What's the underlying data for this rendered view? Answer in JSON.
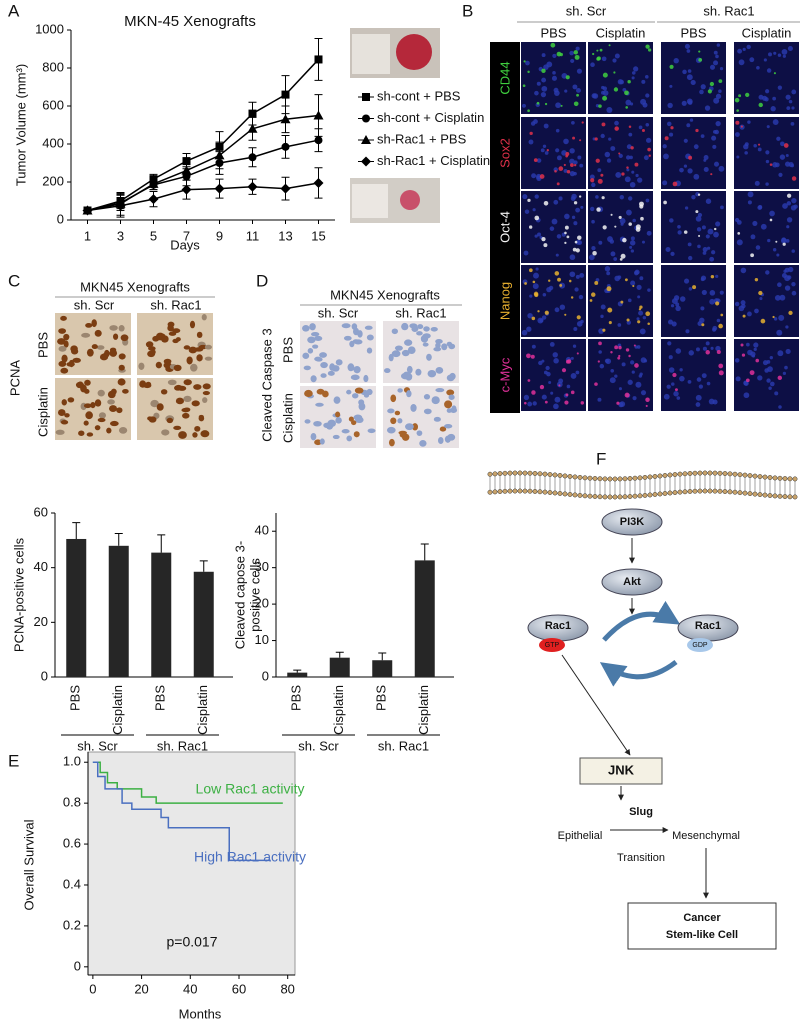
{
  "panel_letters": [
    "A",
    "B",
    "C",
    "D",
    "E",
    "F"
  ],
  "chart_data": [
    {
      "type": "line",
      "title": "MKN-45 Xenografts",
      "xlabel": "Days",
      "ylabel": "Tumor Volume (mm³)",
      "x": [
        1,
        3,
        5,
        7,
        9,
        11,
        13,
        15
      ],
      "xlim": [
        0,
        16
      ],
      "xticks": [
        1,
        3,
        5,
        7,
        9,
        11,
        13,
        15
      ],
      "ylim": [
        0,
        1000
      ],
      "yticks": [
        0,
        200,
        400,
        600,
        800,
        1000
      ],
      "legend": "right",
      "series": [
        {
          "name": "sh-cont + PBS",
          "color": "#000000",
          "marker": "square",
          "values": [
            50,
            100,
            215,
            310,
            385,
            560,
            660,
            845
          ],
          "errors": [
            10,
            40,
            25,
            40,
            80,
            60,
            100,
            110
          ]
        },
        {
          "name": "sh-cont + Cisplatin",
          "color": "#000000",
          "marker": "circle",
          "values": [
            50,
            90,
            185,
            230,
            300,
            330,
            385,
            420
          ],
          "errors": [
            10,
            40,
            25,
            50,
            60,
            50,
            60,
            60
          ]
        },
        {
          "name": "sh-Rac1 + PBS",
          "color": "#000000",
          "marker": "triangle",
          "values": [
            50,
            85,
            190,
            260,
            340,
            480,
            530,
            550
          ],
          "errors": [
            10,
            60,
            30,
            50,
            70,
            60,
            70,
            110
          ]
        },
        {
          "name": "sh-Rac1 + Cisplatin",
          "color": "#000000",
          "marker": "diamond",
          "values": [
            50,
            75,
            110,
            160,
            165,
            175,
            165,
            195
          ],
          "errors": [
            10,
            60,
            40,
            50,
            50,
            40,
            60,
            80
          ]
        }
      ]
    },
    {
      "type": "bar",
      "ylabel": [
        "PCNA-positive cells"
      ],
      "categories": [
        "PBS",
        "Cisplatin",
        "PBS",
        "Cisplatin"
      ],
      "groups": [
        "sh. Scr",
        "sh. Rac1"
      ],
      "values": [
        50.5,
        48,
        45.5,
        38.5
      ],
      "errors": [
        6,
        4.5,
        6.5,
        4
      ],
      "color": "#262626",
      "ylim": [
        0,
        60
      ],
      "yticks": [
        0,
        20,
        40,
        60
      ]
    },
    {
      "type": "bar",
      "ylabel": [
        "Cleaved capose 3-",
        "positive cells"
      ],
      "categories": [
        "PBS",
        "Cisplatin",
        "PBS",
        "Cisplatin"
      ],
      "groups": [
        "sh. Scr",
        "sh. Rac1"
      ],
      "values": [
        1.2,
        5.3,
        4.6,
        32
      ],
      "errors": [
        0.7,
        1.5,
        2,
        4.5
      ],
      "color": "#262626",
      "ylim": [
        0,
        45
      ],
      "yticks": [
        0,
        10,
        20,
        30,
        40
      ]
    },
    {
      "type": "line",
      "xlabel": "Months",
      "ylabel": "Overall Survival",
      "annotation": "p=0.017",
      "background": "#e8e8e8",
      "xlim": [
        -2,
        83
      ],
      "xticks": [
        0,
        20,
        40,
        60,
        80
      ],
      "ylim": [
        -0.04,
        1.05
      ],
      "yticks": [
        0,
        0.2,
        0.4,
        0.6,
        0.8,
        {
          "value": 1,
          "label": "1.0"
        }
      ],
      "series": [
        {
          "name": "Low Rac1 activity",
          "color": "#3cb043",
          "x": [
            0,
            3,
            3,
            6,
            6,
            10,
            10,
            20,
            20,
            26,
            26,
            78
          ],
          "values": [
            1,
            1,
            0.95,
            0.95,
            0.9,
            0.9,
            0.87,
            0.87,
            0.83,
            0.83,
            0.8,
            0.8
          ]
        },
        {
          "name": "High Rac1 activity",
          "color": "#4a6fc0",
          "x": [
            0,
            2,
            2,
            5,
            5,
            12,
            12,
            16,
            16,
            28,
            28,
            31,
            31,
            56,
            56,
            73
          ],
          "values": [
            1,
            1,
            0.93,
            0.93,
            0.87,
            0.87,
            0.8,
            0.8,
            0.77,
            0.77,
            0.73,
            0.73,
            0.68,
            0.68,
            0.52,
            0.52
          ]
        }
      ]
    }
  ],
  "panel_b": {
    "groups": [
      "sh. Scr",
      "sh. Rac1"
    ],
    "columns": [
      "PBS",
      "Cisplatin",
      "PBS",
      "Cisplatin"
    ],
    "rows": [
      {
        "label": "CD44",
        "color": "#3fcf3f"
      },
      {
        "label": "Sox2",
        "color": "#e0304a"
      },
      {
        "label": "Oct-4",
        "color": "#f4f4f4"
      },
      {
        "label": "Nanog",
        "color": "#e8b030"
      },
      {
        "label": "c-Myc",
        "color": "#e0309a"
      }
    ]
  },
  "panel_c": {
    "title": "MKN45 Xenografts",
    "columns": [
      "sh. Scr",
      "sh. Rac1"
    ],
    "rows": [
      "PBS",
      "Cisplatin"
    ],
    "stain": "PCNA"
  },
  "panel_d": {
    "title": "MKN45 Xenografts",
    "columns": [
      "sh. Scr",
      "sh. Rac1"
    ],
    "rows": [
      "PBS",
      "Cisplatin"
    ],
    "stain": "Cleaved Caspase 3"
  },
  "diagram": {
    "pi3k": "PI3K",
    "akt": "Akt",
    "rac1_gtp": {
      "label": "Rac1",
      "state": "GTP"
    },
    "rac1_gdp": {
      "label": "Rac1",
      "state": "GDP"
    },
    "jnk": "JNK",
    "slug": "Slug",
    "epithelial": "Epithelial",
    "mesenchymal": "Mesenchymal",
    "transition": "Transition",
    "outcome": [
      "Cancer",
      "Stem-like Cell"
    ]
  }
}
